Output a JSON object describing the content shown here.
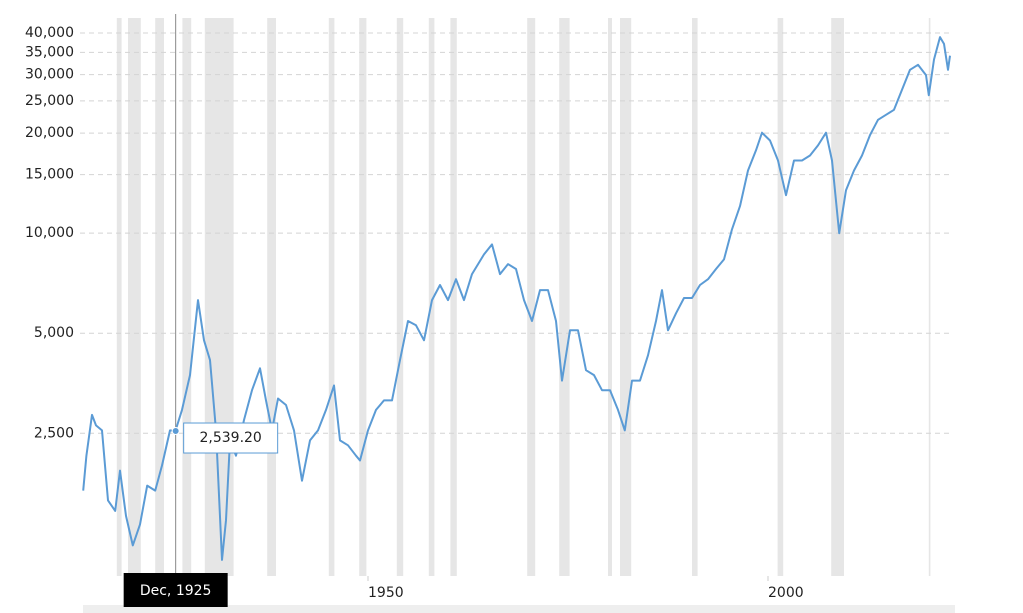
{
  "chart_data": {
    "type": "line",
    "log_scale": true,
    "grid": true,
    "x": [
      1914.4,
      1914.8,
      1915.5,
      1916,
      1916.75,
      1917.5,
      1918.4,
      1919,
      1919.75,
      1920.6,
      1921.5,
      1922.4,
      1923.4,
      1924.25,
      1925.25,
      1925.92,
      1926.75,
      1927.75,
      1928.75,
      1929.5,
      1930.25,
      1931,
      1931.75,
      1932.25,
      1932.75,
      1933.5,
      1934.5,
      1935.5,
      1936.5,
      1937.25,
      1938,
      1938.75,
      1939.75,
      1940.75,
      1941.75,
      1942.75,
      1943.75,
      1944.75,
      1945.75,
      1946.5,
      1947.5,
      1948.5,
      1949,
      1950,
      1951,
      1952,
      1953,
      1954,
      1955,
      1956,
      1957,
      1958,
      1959,
      1960,
      1961,
      1962,
      1963,
      1964.5,
      1965.5,
      1966.5,
      1967.5,
      1968.5,
      1969.5,
      1970.5,
      1971.5,
      1972.5,
      1973.5,
      1974.25,
      1975.25,
      1976.25,
      1977.25,
      1978.25,
      1979.25,
      1980.25,
      1981.25,
      1982.1,
      1983,
      1984,
      1985,
      1986,
      1986.75,
      1987.5,
      1988.5,
      1989.5,
      1990.5,
      1991.5,
      1992.5,
      1993.5,
      1994.5,
      1995.5,
      1996.5,
      1997.5,
      1998.5,
      1999.25,
      2000.25,
      2001.25,
      2002.25,
      2003.25,
      2004.25,
      2005.25,
      2006.25,
      2007.25,
      2008,
      2008.9,
      2009.75,
      2010.75,
      2011.75,
      2012.75,
      2013.75,
      2014.75,
      2015.75,
      2016.75,
      2017.75,
      2018.75,
      2019.75,
      2020.1,
      2020.75,
      2021.5,
      2022,
      2022.5,
      2022.75
    ],
    "series": [
      {
        "color": "#5b9bd5",
        "values": [
          1680,
          2140,
          2840,
          2640,
          2550,
          1570,
          1460,
          1930,
          1410,
          1150,
          1330,
          1740,
          1680,
          2000,
          2550,
          2539.2,
          2940,
          3740,
          6290,
          4760,
          4150,
          2550,
          1040,
          1370,
          2380,
          2140,
          2740,
          3370,
          3920,
          3140,
          2550,
          3180,
          3040,
          2550,
          1800,
          2380,
          2550,
          2940,
          3480,
          2380,
          2300,
          2140,
          2070,
          2550,
          2940,
          3140,
          3140,
          4150,
          5440,
          5280,
          4760,
          6290,
          6980,
          6290,
          7270,
          6290,
          7530,
          8630,
          9250,
          7530,
          8070,
          7800,
          6290,
          5440,
          6740,
          6740,
          5440,
          3600,
          5100,
          5100,
          3870,
          3740,
          3370,
          3370,
          2940,
          2550,
          3600,
          3600,
          4290,
          5440,
          6740,
          5100,
          5740,
          6380,
          6380,
          6980,
          7270,
          7800,
          8340,
          10270,
          12060,
          15430,
          17750,
          20060,
          19000,
          16540,
          13010,
          16540,
          16540,
          17130,
          18360,
          20060,
          16540,
          10000,
          13470,
          15430,
          17130,
          19730,
          21930,
          22700,
          23500,
          27000,
          31000,
          32100,
          29900,
          26000,
          33300,
          38900,
          37100,
          31000,
          34200
        ]
      }
    ],
    "recessions": [
      [
        1918.6,
        1919.2
      ],
      [
        1920.0,
        1921.6
      ],
      [
        1923.4,
        1924.5
      ],
      [
        1926.8,
        1927.9
      ],
      [
        1929.6,
        1933.2
      ],
      [
        1937.4,
        1938.5
      ],
      [
        1945.1,
        1945.8
      ],
      [
        1948.9,
        1949.8
      ],
      [
        1953.6,
        1954.4
      ],
      [
        1957.6,
        1958.3
      ],
      [
        1960.3,
        1961.1
      ],
      [
        1969.9,
        1970.9
      ],
      [
        1973.9,
        1975.2
      ],
      [
        1980.0,
        1980.5
      ],
      [
        1981.5,
        1982.9
      ],
      [
        1990.5,
        1991.2
      ],
      [
        2001.2,
        2001.9
      ],
      [
        2007.9,
        2009.5
      ],
      [
        2020.1,
        2020.3
      ]
    ],
    "recession_color": "#e6e6e6",
    "xlim": [
      1914,
      2023
    ],
    "xticks": [
      1950,
      2000
    ],
    "ylim": [
      930,
      42000
    ],
    "yticks": [
      {
        "value": 2500,
        "label": "2,500"
      },
      {
        "value": 5000,
        "label": "5,000"
      },
      {
        "value": 10000,
        "label": "10,000"
      },
      {
        "value": 15000,
        "label": "15,000"
      },
      {
        "value": 20000,
        "label": "20,000"
      },
      {
        "value": 25000,
        "label": "25,000"
      },
      {
        "value": 30000,
        "label": "30,000"
      },
      {
        "value": 35000,
        "label": "35,000"
      },
      {
        "value": 40000,
        "label": "40,000"
      }
    ],
    "tooltip": {
      "label": "Dec, 1925",
      "value": 2539.2,
      "value_label": "2,539.20"
    }
  }
}
